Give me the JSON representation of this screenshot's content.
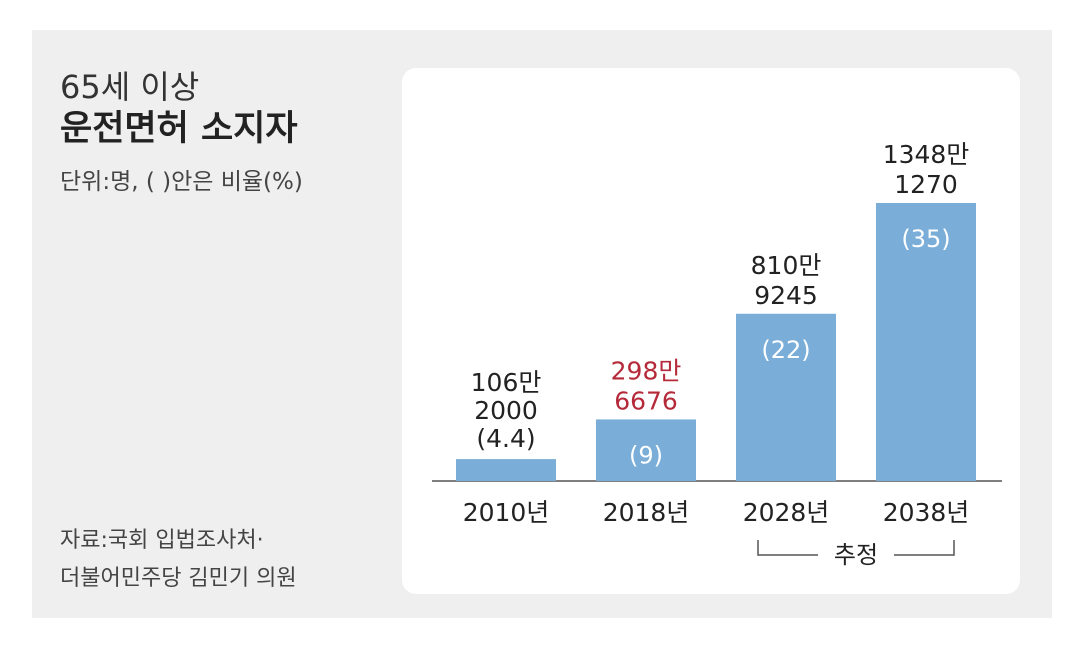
{
  "title_line1": "65세 이상",
  "title_line2": "운전면허 소지자",
  "unit_note": "단위:명, ( )안은 비율(%)",
  "source_line1": "자료:국회 입법조사처·",
  "source_line2": "더불어민주당 김민기 의원",
  "estimate_label": "추정",
  "colors": {
    "bar": "#7aaed8",
    "highlight_text": "#b52a3a",
    "text": "#222222",
    "bar_label_inside": "#ffffff"
  },
  "chart_data": {
    "type": "bar",
    "categories": [
      "2010년",
      "2018년",
      "2028년",
      "2038년"
    ],
    "values": [
      1062000,
      2986676,
      8109245,
      13481270
    ],
    "value_labels": [
      [
        "106만",
        "2000"
      ],
      [
        "298만",
        "6676"
      ],
      [
        "810만",
        "9245"
      ],
      [
        "1348만",
        "1270"
      ]
    ],
    "ratio_labels": [
      "(4.4)",
      "(9)",
      "(22)",
      "(35)"
    ],
    "ratios": [
      4.4,
      9,
      22,
      35
    ],
    "highlight_index": 1,
    "estimated_categories": [
      "2028년",
      "2038년"
    ],
    "title": "65세 이상 운전면허 소지자",
    "unit": "명",
    "ylim": [
      0,
      13481270
    ]
  }
}
